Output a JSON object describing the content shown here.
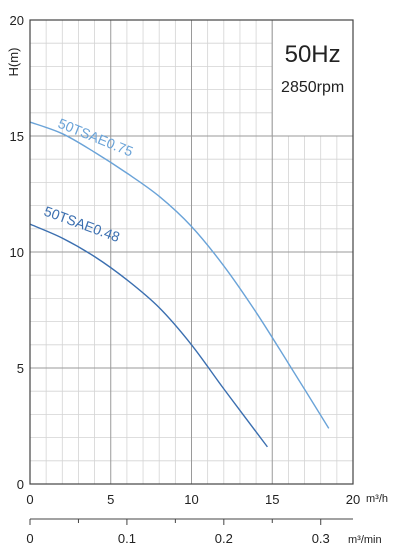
{
  "chart_data": {
    "type": "line",
    "ylabel": "H(m)",
    "ylim": [
      0,
      20
    ],
    "xlim": [
      0,
      20
    ],
    "x_secondary_lim": [
      0,
      0.3333
    ],
    "y_ticks": [
      "0",
      "5",
      "10",
      "15",
      "20"
    ],
    "x_ticks": [
      "0",
      "5",
      "10",
      "15",
      "20"
    ],
    "x_unit": "m³/h",
    "x_secondary_ticks": [
      "0",
      "0.1",
      "0.2",
      "0.3"
    ],
    "x_secondary_unit": "m³/min",
    "info_box": {
      "frequency": "50Hz",
      "speed": "2850rpm"
    },
    "grid": true,
    "series": [
      {
        "name": "50TSAE0.75",
        "color": "#6aa3d8",
        "x": [
          0,
          2,
          4,
          6,
          8,
          10,
          12,
          14,
          16,
          18.5
        ],
        "y": [
          15.6,
          15.1,
          14.3,
          13.4,
          12.4,
          11.1,
          9.4,
          7.4,
          5.2,
          2.4
        ]
      },
      {
        "name": "50TSAE0.48",
        "color": "#3b6fb0",
        "x": [
          0,
          2,
          4,
          6,
          8,
          10,
          12,
          14.7
        ],
        "y": [
          11.2,
          10.6,
          9.8,
          8.8,
          7.6,
          6.0,
          4.1,
          1.6
        ]
      }
    ]
  }
}
